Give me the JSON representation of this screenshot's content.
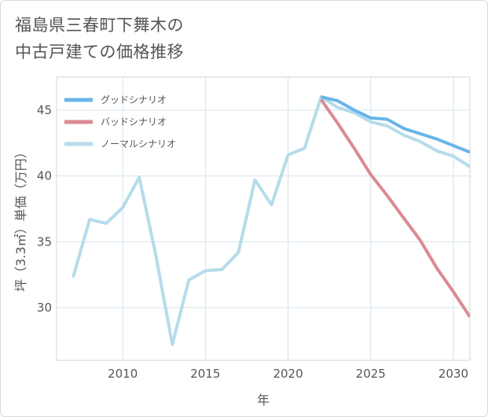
{
  "chart_data": {
    "type": "line",
    "title": {
      "line1": "福島県三春町下舞木の",
      "line2": "中古戸建ての価格推移"
    },
    "xlabel": "年",
    "ylabel": "坪（3.3㎡）単価（万円）",
    "xlim": [
      2006,
      2031
    ],
    "ylim": [
      26,
      47.5
    ],
    "xticks": [
      2010,
      2015,
      2020,
      2025,
      2030
    ],
    "xtick_labels": [
      "2010",
      "2015",
      "2020",
      "2025",
      "2030"
    ],
    "yticks": [
      30,
      35,
      40,
      45
    ],
    "ytick_labels": [
      "30",
      "35",
      "40",
      "45"
    ],
    "grid": true,
    "legend_position": "top-left",
    "series": [
      {
        "name": "グッドシナリオ",
        "color": "#6ab4ea",
        "x": [
          2022,
          2023,
          2024,
          2025,
          2026,
          2027,
          2028,
          2029,
          2030,
          2031
        ],
        "y": [
          46.0,
          45.7,
          45.0,
          44.4,
          44.3,
          43.6,
          43.2,
          42.8,
          42.3,
          41.8
        ]
      },
      {
        "name": "バッドシナリオ",
        "color": "#dc8a92",
        "x": [
          2022,
          2023,
          2024,
          2025,
          2026,
          2027,
          2028,
          2029,
          2030,
          2031
        ],
        "y": [
          45.8,
          44.0,
          42.1,
          40.1,
          38.5,
          36.8,
          35.1,
          33.0,
          31.2,
          29.3
        ]
      },
      {
        "name": "ノーマルシナリオ",
        "color": "#b5dcea",
        "x": [
          2007,
          2008,
          2009,
          2010,
          2011,
          2012,
          2013,
          2014,
          2015,
          2016,
          2017,
          2018,
          2019,
          2020,
          2021,
          2022,
          2023,
          2024,
          2025,
          2026,
          2027,
          2028,
          2029,
          2030,
          2031
        ],
        "y": [
          32.3,
          36.7,
          36.4,
          37.6,
          39.9,
          34.0,
          27.2,
          32.1,
          32.8,
          32.9,
          34.2,
          39.7,
          37.8,
          41.6,
          42.1,
          46.0,
          45.2,
          44.8,
          44.1,
          43.8,
          43.1,
          42.6,
          41.9,
          41.5,
          40.7
        ]
      }
    ]
  }
}
